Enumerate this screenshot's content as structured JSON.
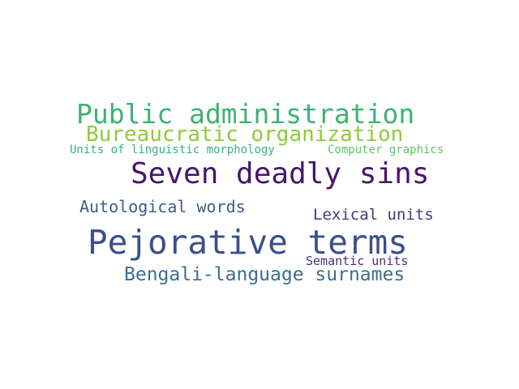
{
  "word_cloud": {
    "words": [
      {
        "id": "public",
        "text": "Public administration",
        "color": "#3cb371"
      },
      {
        "id": "bureau",
        "text": "Bureaucratic organization",
        "color": "#8dcc3a"
      },
      {
        "id": "units_ling",
        "text": "Units of linguistic morphology",
        "color": "#35b47a"
      },
      {
        "id": "computer",
        "text": "Computer graphics",
        "color": "#5ec462"
      },
      {
        "id": "seven",
        "text": "Seven deadly sins",
        "color": "#47156b"
      },
      {
        "id": "autolog",
        "text": "Autological words",
        "color": "#3e5b8e"
      },
      {
        "id": "lexical",
        "text": "Lexical units",
        "color": "#433a7c"
      },
      {
        "id": "pejor",
        "text": "Pejorative terms",
        "color": "#3b4f8a"
      },
      {
        "id": "semantic",
        "text": "Semantic units",
        "color": "#472d7b"
      },
      {
        "id": "bengali",
        "text": "Bengali-language surnames",
        "color": "#3a6e90"
      }
    ]
  }
}
